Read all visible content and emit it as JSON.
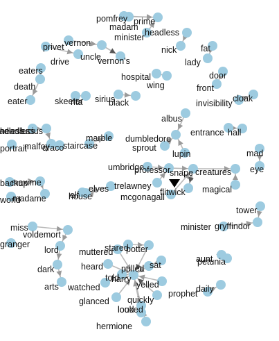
{
  "node_color": "#9dcbe0",
  "edge_color": "#b9b9b9",
  "arrow_color": "#555555",
  "words": [
    "pomfrey",
    "madam",
    "prime",
    "minister",
    "headless",
    "nick",
    "vernon",
    "privet",
    "drive",
    "uncle",
    "vernon's",
    "fat",
    "lady",
    "eaters",
    "death",
    "eater",
    "door",
    "front",
    "hospital",
    "wing",
    "skeeter",
    "rita",
    "sirius",
    "black",
    "invisibility",
    "cloak",
    "albus",
    "dumbledore",
    "entrance",
    "hall",
    "nearly",
    "headless",
    "lucius",
    "malfoy",
    "portrait",
    "draco",
    "staircase",
    "marble",
    "sprout",
    "lupin",
    "mad",
    "eye",
    "umbridge",
    "professor",
    "snape",
    "creatures",
    "magical",
    "backup",
    "maxime",
    "madame",
    "world",
    "house",
    "elf",
    "elves",
    "trelawney",
    "mcgonagall",
    "flitwick",
    "tower",
    "minister",
    "gryffindor",
    "miss",
    "voldemort",
    "granger",
    "lord",
    "dark",
    "arts",
    "muttered",
    "stared",
    "potter",
    "heard",
    "pulled",
    "sat",
    "told",
    "harry",
    "yelled",
    "watched",
    "quickly",
    "glanced",
    "looked",
    "loud",
    "hermione",
    "aunt",
    "petunia",
    "prophet",
    "daily"
  ]
}
